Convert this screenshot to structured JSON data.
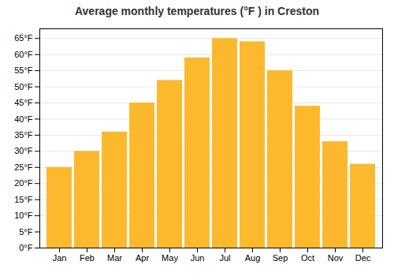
{
  "chart_data": {
    "type": "bar",
    "title": "Average monthly temperatures (°F ) in Creston",
    "categories": [
      "Jan",
      "Feb",
      "Mar",
      "Apr",
      "May",
      "Jun",
      "Jul",
      "Aug",
      "Sep",
      "Oct",
      "Nov",
      "Dec"
    ],
    "values": [
      25,
      30,
      36,
      45,
      52,
      59,
      65,
      64,
      55,
      44,
      33,
      26
    ],
    "color": "#FDB92E",
    "ylim": [
      0,
      68
    ],
    "yticks": [
      {
        "value": 0,
        "label": "0°F"
      },
      {
        "value": 5,
        "label": "5°F"
      },
      {
        "value": 10,
        "label": "10°F"
      },
      {
        "value": 15,
        "label": "15°F"
      },
      {
        "value": 20,
        "label": "20°F"
      },
      {
        "value": 25,
        "label": "25°F"
      },
      {
        "value": 30,
        "label": "30°F"
      },
      {
        "value": 35,
        "label": "35°F"
      },
      {
        "value": 40,
        "label": "40°F"
      },
      {
        "value": 45,
        "label": "45°F"
      },
      {
        "value": 50,
        "label": "50°F"
      },
      {
        "value": 55,
        "label": "55°F"
      },
      {
        "value": 60,
        "label": "60°F"
      },
      {
        "value": 65,
        "label": "65°F"
      }
    ],
    "grid": true
  }
}
